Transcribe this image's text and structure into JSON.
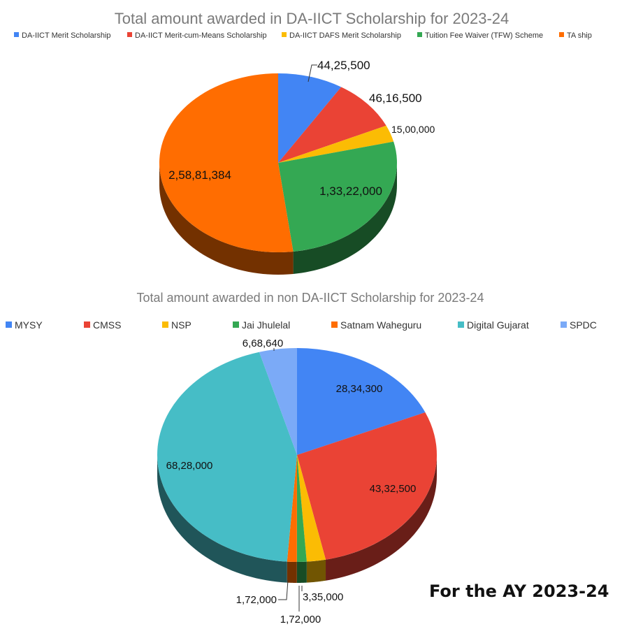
{
  "chart_data": [
    {
      "type": "pie",
      "title": "Total amount awarded in DA-IICT Scholarship for 2023-24",
      "legend_position": "top",
      "categories": [
        "DA-IICT Merit Scholarship",
        "DA-IICT Merit-cum-Means Scholarship",
        "DA-IICT DAFS Merit Scholarship",
        "Tuition Fee Waiver (TFW) Scheme",
        "TA ship"
      ],
      "values": [
        4425500,
        4616500,
        1500000,
        13322000,
        25881384
      ],
      "value_labels": [
        "44,25,500",
        "46,16,500",
        "15,00,000",
        "1,33,22,000",
        "2,58,81,384"
      ],
      "colors": [
        "#4285f4",
        "#ea4335",
        "#fbbc04",
        "#34a853",
        "#ff6d01"
      ],
      "style": "3d"
    },
    {
      "type": "pie",
      "title": "Total amount awarded in non DA-IICT Scholarship for 2023-24",
      "legend_position": "top",
      "categories": [
        "MYSY",
        "CMSS",
        "NSP",
        "Jai Jhulelal",
        "Satnam Waheguru",
        "Digital Gujarat",
        "SPDC"
      ],
      "values": [
        2834300,
        4332500,
        335000,
        172000,
        172000,
        6828000,
        668640
      ],
      "value_labels": [
        "28,34,300",
        "43,32,500",
        "3,35,000",
        "1,72,000",
        "1,72,000",
        "68,28,000",
        "6,68,640"
      ],
      "colors": [
        "#4285f4",
        "#ea4335",
        "#fbbc04",
        "#34a853",
        "#ff6d01",
        "#46bdc6",
        "#7baaf7"
      ],
      "style": "3d"
    }
  ],
  "footer": {
    "text": "For the AY 2023-24"
  }
}
